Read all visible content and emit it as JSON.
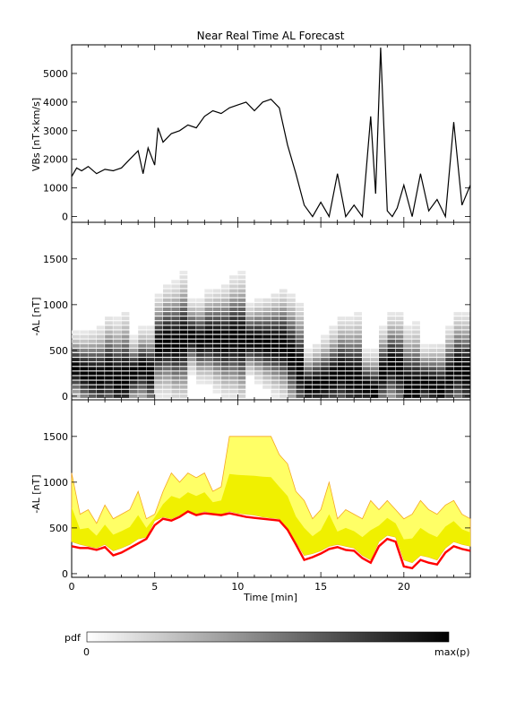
{
  "title": "Near Real Time AL Forecast",
  "colors": {
    "frame": "#000000",
    "vbs_line": "#000000",
    "forecast_median": "#ff0000",
    "band_outer": "#ffff66",
    "band_mid": "#f0f000",
    "band_edge": "#f5a623",
    "pdf_low": "#ffffff",
    "pdf_high": "#000000"
  },
  "colorbar": {
    "label": "pdf",
    "min_label": "0",
    "max_label": "max(p)"
  },
  "chart_data": [
    {
      "type": "line",
      "panel": "top",
      "ylabel": "VBs [nT×km/s]",
      "xlim": [
        0,
        24
      ],
      "ylim": [
        -200,
        6000
      ],
      "yticks": [
        0,
        1000,
        2000,
        3000,
        4000,
        5000
      ],
      "ytick_labels": [
        "0",
        "1000",
        "2000",
        "3000",
        "4000",
        "5000"
      ],
      "series": [
        {
          "x": [
            0,
            0.3,
            0.6,
            1,
            1.5,
            2,
            2.5,
            3,
            3.5,
            4,
            4.3,
            4.6,
            5,
            5.2,
            5.5,
            6,
            6.5,
            7,
            7.5,
            8,
            8.5,
            9,
            9.5,
            10,
            10.5,
            11,
            11.5,
            12,
            12.5,
            13,
            13.5,
            14,
            14.5,
            15,
            15.5,
            16,
            16.5,
            17,
            17.5,
            18,
            18.3,
            18.6,
            19,
            19.3,
            19.6,
            20,
            20.5,
            21,
            21.5,
            22,
            22.5,
            23,
            23.5,
            24
          ],
          "y": [
            1400,
            1700,
            1600,
            1750,
            1500,
            1650,
            1600,
            1700,
            2000,
            2300,
            1500,
            2400,
            1800,
            3100,
            2600,
            2900,
            3000,
            3200,
            3100,
            3500,
            3700,
            3600,
            3800,
            3900,
            4000,
            3700,
            4000,
            4100,
            3800,
            2500,
            1500,
            400,
            0,
            500,
            0,
            1500,
            0,
            400,
            0,
            3500,
            800,
            5900,
            200,
            0,
            300,
            1100,
            0,
            1500,
            200,
            600,
            0,
            3300,
            400,
            1100
          ]
        }
      ]
    },
    {
      "type": "heatmap",
      "panel": "middle",
      "ylabel": "-AL [nT]",
      "xlim": [
        0,
        24
      ],
      "ylim": [
        -40,
        1900
      ],
      "yticks": [
        0,
        500,
        1000,
        1500
      ],
      "ytick_labels": [
        "0",
        "500",
        "1000",
        "1500"
      ],
      "ridge": {
        "x": [
          0,
          0.5,
          1,
          1.5,
          2,
          2.5,
          3,
          3.5,
          4,
          4.5,
          5,
          5.5,
          6,
          6.5,
          7,
          7.5,
          8,
          8.5,
          9,
          9.5,
          10,
          10.5,
          11,
          11.5,
          12,
          12.5,
          13,
          13.5,
          14,
          14.5,
          15,
          15.5,
          16,
          16.5,
          17,
          17.5,
          18,
          18.5,
          19,
          19.5,
          20,
          20.5,
          21,
          21.5,
          22,
          22.5,
          23,
          23.5,
          24
        ],
        "y": [
          300,
          250,
          220,
          200,
          260,
          180,
          200,
          250,
          300,
          250,
          550,
          600,
          580,
          620,
          650,
          600,
          640,
          620,
          600,
          640,
          620,
          610,
          600,
          580,
          570,
          560,
          450,
          300,
          100,
          120,
          150,
          200,
          250,
          200,
          180,
          100,
          50,
          250,
          350,
          300,
          100,
          80,
          150,
          120,
          80,
          200,
          300,
          250,
          200
        ]
      }
    },
    {
      "type": "area",
      "panel": "bottom",
      "ylabel": "-AL [nT]",
      "xlabel": "Time [min]",
      "xlim": [
        0,
        24
      ],
      "ylim": [
        -40,
        1900
      ],
      "yticks": [
        0,
        500,
        1000,
        1500
      ],
      "ytick_labels": [
        "0",
        "500",
        "1000",
        "1500"
      ],
      "xticks": [
        0,
        5,
        10,
        15,
        20
      ],
      "xtick_labels": [
        "0",
        "5",
        "10",
        "15",
        "20"
      ],
      "x": [
        0,
        0.5,
        1,
        1.5,
        2,
        2.5,
        3,
        3.5,
        4,
        4.5,
        5,
        5.5,
        6,
        6.5,
        7,
        7.5,
        8,
        8.5,
        9,
        9.5,
        10,
        10.5,
        11,
        11.5,
        12,
        12.5,
        13,
        13.5,
        14,
        14.5,
        15,
        15.5,
        16,
        16.5,
        17,
        17.5,
        18,
        18.5,
        19,
        19.5,
        20,
        20.5,
        21,
        21.5,
        22,
        22.5,
        23,
        23.5,
        24
      ],
      "upper": [
        1100,
        650,
        700,
        550,
        750,
        600,
        650,
        700,
        900,
        600,
        650,
        900,
        1100,
        1000,
        1100,
        1050,
        1100,
        900,
        950,
        1500,
        1500,
        1500,
        1500,
        1500,
        1500,
        1300,
        1200,
        900,
        800,
        600,
        700,
        1000,
        600,
        700,
        650,
        600,
        800,
        700,
        800,
        700,
        600,
        650,
        800,
        700,
        650,
        750,
        800,
        650,
        600
      ],
      "lower": [
        350,
        320,
        300,
        280,
        320,
        250,
        280,
        320,
        380,
        400,
        580,
        620,
        600,
        640,
        680,
        650,
        680,
        660,
        650,
        680,
        660,
        650,
        640,
        620,
        610,
        600,
        500,
        350,
        200,
        220,
        250,
        300,
        320,
        300,
        280,
        200,
        150,
        350,
        420,
        400,
        150,
        120,
        200,
        180,
        150,
        280,
        350,
        320,
        300
      ],
      "series": [
        {
          "name": "",
          "x": [
            0,
            0.5,
            1,
            1.5,
            2,
            2.5,
            3,
            3.5,
            4,
            4.5,
            5,
            5.5,
            6,
            6.5,
            7,
            7.5,
            8,
            8.5,
            9,
            9.5,
            10,
            10.5,
            11,
            11.5,
            12,
            12.5,
            13,
            13.5,
            14,
            14.5,
            15,
            15.5,
            16,
            16.5,
            17,
            17.5,
            18,
            18.5,
            19,
            19.5,
            20,
            20.5,
            21,
            21.5,
            22,
            22.5,
            23,
            23.5,
            24
          ],
          "y": [
            300,
            280,
            280,
            260,
            290,
            200,
            230,
            280,
            330,
            380,
            530,
            600,
            580,
            620,
            680,
            640,
            660,
            650,
            640,
            660,
            640,
            620,
            610,
            600,
            590,
            580,
            480,
            320,
            150,
            180,
            220,
            270,
            290,
            260,
            250,
            170,
            120,
            300,
            380,
            350,
            80,
            60,
            150,
            120,
            100,
            230,
            300,
            270,
            250
          ]
        }
      ]
    }
  ]
}
